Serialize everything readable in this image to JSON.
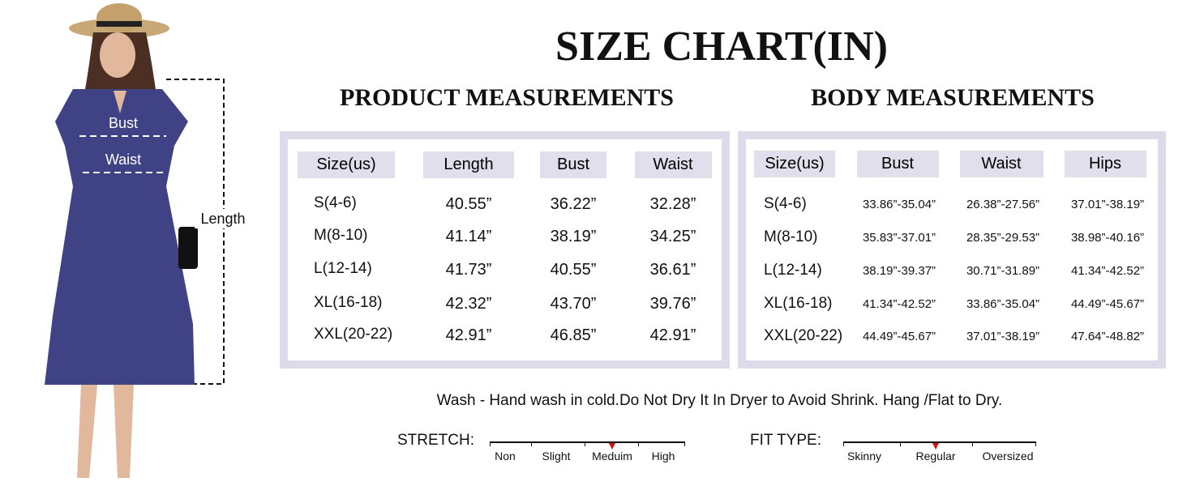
{
  "title": "SIZE CHART(IN)",
  "figure": {
    "bust": "Bust",
    "waist": "Waist",
    "length": "Length"
  },
  "product": {
    "title": "PRODUCT MEASUREMENTS",
    "headers": [
      "Size(us)",
      "Length",
      "Bust",
      "Waist"
    ],
    "rows": [
      [
        "S(4-6)",
        "40.55”",
        "36.22”",
        "32.28”"
      ],
      [
        "M(8-10)",
        "41.14”",
        "38.19”",
        "34.25”"
      ],
      [
        "L(12-14)",
        "41.73”",
        "40.55”",
        "36.61”"
      ],
      [
        "XL(16-18)",
        "42.32”",
        "43.70”",
        "39.76”"
      ],
      [
        "XXL(20-22)",
        "42.91”",
        "46.85”",
        "42.91”"
      ]
    ]
  },
  "body": {
    "title": "BODY MEASUREMENTS",
    "headers": [
      "Size(us)",
      "Bust",
      "Waist",
      "Hips"
    ],
    "rows": [
      [
        "S(4-6)",
        "33.86”-35.04”",
        "26.38”-27.56”",
        "37.01”-38.19”"
      ],
      [
        "M(8-10)",
        "35.83”-37.01”",
        "28.35”-29.53”",
        "38.98”-40.16”"
      ],
      [
        "L(12-14)",
        "38.19”-39.37”",
        "30.71”-31.89”",
        "41.34”-42.52”"
      ],
      [
        "XL(16-18)",
        "41.34”-42.52”",
        "33.86”-35.04”",
        "44.49”-45.67”"
      ],
      [
        "XXL(20-22)",
        "44.49”-45.67”",
        "37.01”-38.19”",
        "47.64”-48.82”"
      ]
    ]
  },
  "care": "Wash - Hand wash in cold.Do Not Dry It In Dryer to Avoid Shrink. Hang /Flat to Dry.",
  "stretch": {
    "label": "STRETCH:",
    "options": [
      "Non",
      "Slight",
      "Meduim",
      "High"
    ],
    "selected": 2
  },
  "fit": {
    "label": "FIT TYPE:",
    "options": [
      "Skinny",
      "Regular",
      "Oversized"
    ],
    "selected": 1
  }
}
